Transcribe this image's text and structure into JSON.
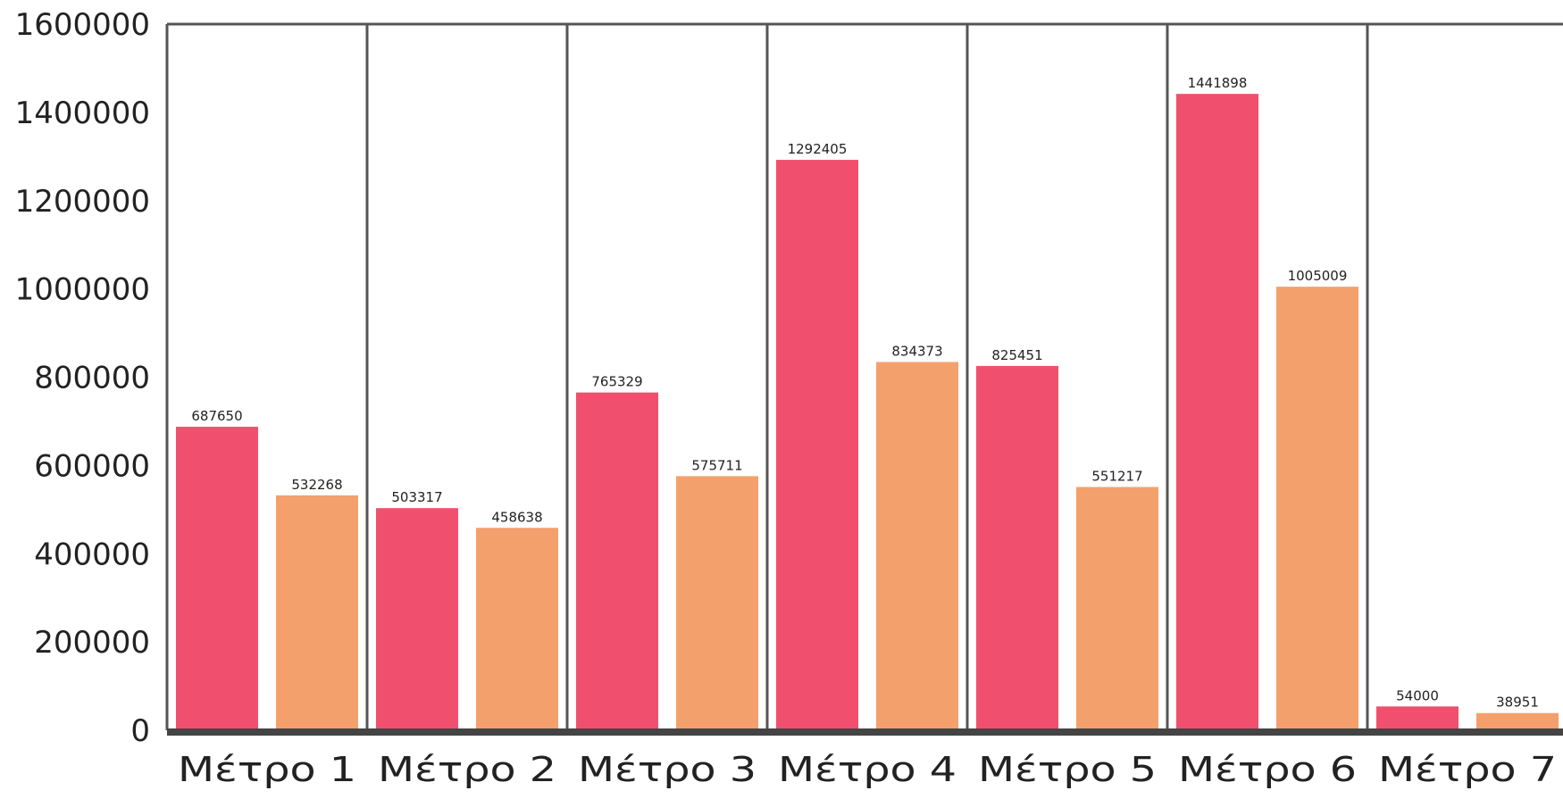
{
  "chart_data": {
    "type": "bar",
    "title": "",
    "xlabel": "",
    "ylabel": "",
    "categories": [
      "Μέτρο 1",
      "Μέτρο 2",
      "Μέτρο 3",
      "Μέτρο 4",
      "Μέτρο 5",
      "Μέτρο 6",
      "Μέτρο 7"
    ],
    "series": [
      {
        "color": "#f0506e",
        "values": [
          687650,
          503317,
          765329,
          1292405,
          825451,
          1441898,
          54000
        ]
      },
      {
        "color": "#f4a06c",
        "values": [
          532268,
          458638,
          575711,
          834373,
          551217,
          1005009,
          38951
        ]
      }
    ],
    "ylim": [
      0,
      1600000
    ],
    "yticks": [
      "0",
      "200000",
      "400000",
      "600000",
      "800000",
      "1000000",
      "1200000",
      "1400000",
      "1600000"
    ],
    "data_labels": [
      [
        "687650",
        "503317",
        "765329",
        "1292405",
        "825451",
        "1441898",
        "54000"
      ],
      [
        "532268",
        "458638",
        "575711",
        "834373",
        "551217",
        "1005009",
        "38951"
      ]
    ],
    "grid": false,
    "legend": "none",
    "colors": {
      "axis": "#555555",
      "baseline": "#444444",
      "text": "#222222"
    }
  }
}
